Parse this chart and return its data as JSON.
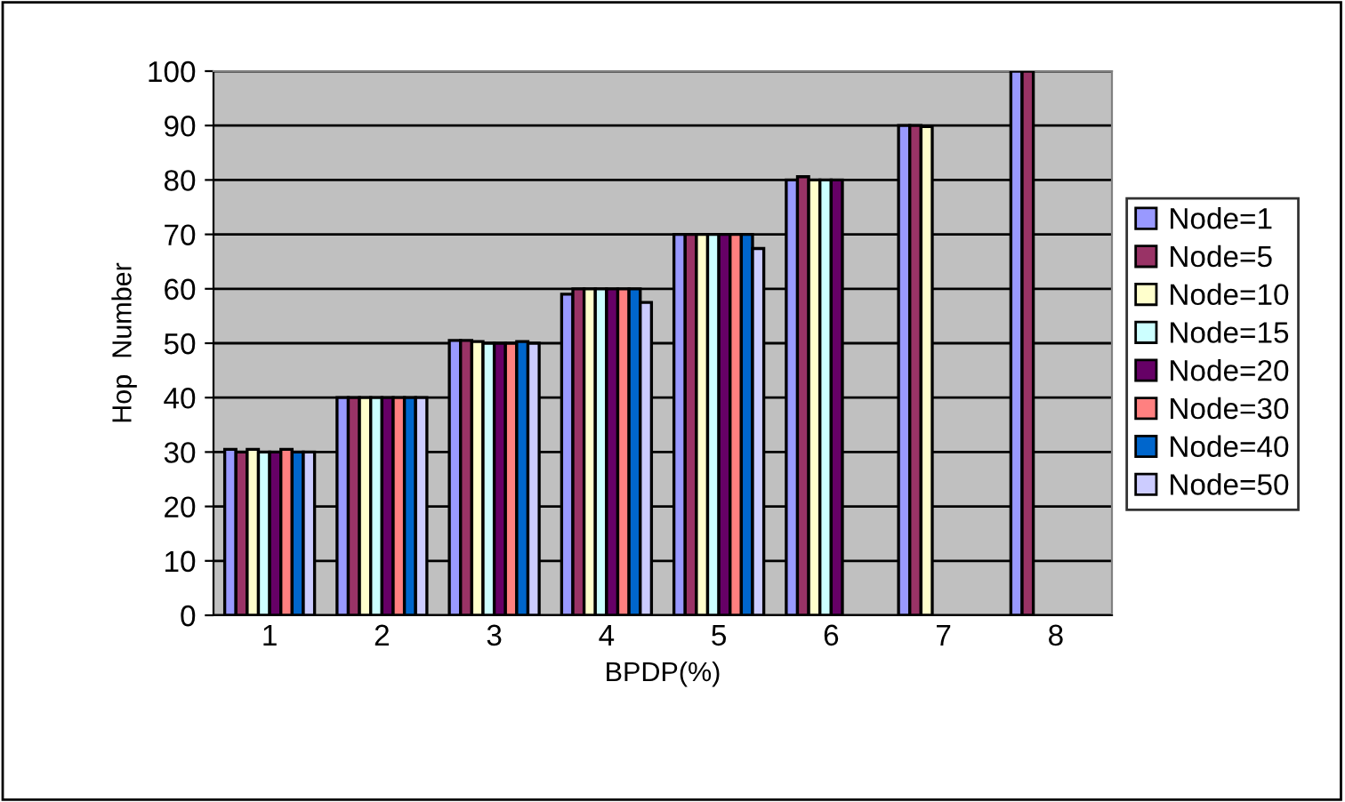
{
  "chart_data": {
    "type": "bar",
    "xlabel": "BPDP(%)",
    "ylabel": "Hop  Number",
    "categories": [
      "1",
      "2",
      "3",
      "4",
      "5",
      "6",
      "7",
      "8"
    ],
    "ylim": [
      0,
      100
    ],
    "yticks": [
      0,
      10,
      20,
      30,
      40,
      50,
      60,
      70,
      80,
      90,
      100
    ],
    "grid": "y",
    "legend": "right",
    "series": [
      {
        "name": "Node=1",
        "color": "#9999ff",
        "values": [
          30.5,
          40,
          50.5,
          59,
          70,
          80,
          90,
          100
        ]
      },
      {
        "name": "Node=5",
        "color": "#993366",
        "values": [
          30,
          40,
          50.5,
          60,
          70,
          80.6,
          90,
          100
        ]
      },
      {
        "name": "Node=10",
        "color": "#ffffcc",
        "values": [
          30.5,
          40,
          50.3,
          60,
          70,
          80,
          89.8,
          null
        ]
      },
      {
        "name": "Node=15",
        "color": "#ccffff",
        "values": [
          30,
          40,
          50,
          60,
          70,
          80,
          null,
          null
        ]
      },
      {
        "name": "Node=20",
        "color": "#660066",
        "values": [
          30,
          40,
          50,
          60,
          70,
          80,
          null,
          null
        ]
      },
      {
        "name": "Node=30",
        "color": "#ff8080",
        "values": [
          30.5,
          40,
          50,
          60,
          70,
          null,
          null,
          null
        ]
      },
      {
        "name": "Node=40",
        "color": "#0066cc",
        "values": [
          30,
          40,
          50.3,
          60,
          70,
          null,
          null,
          null
        ]
      },
      {
        "name": "Node=50",
        "color": "#ccccff",
        "values": [
          30,
          40,
          50,
          57.5,
          67.4,
          null,
          null,
          null
        ]
      }
    ]
  }
}
